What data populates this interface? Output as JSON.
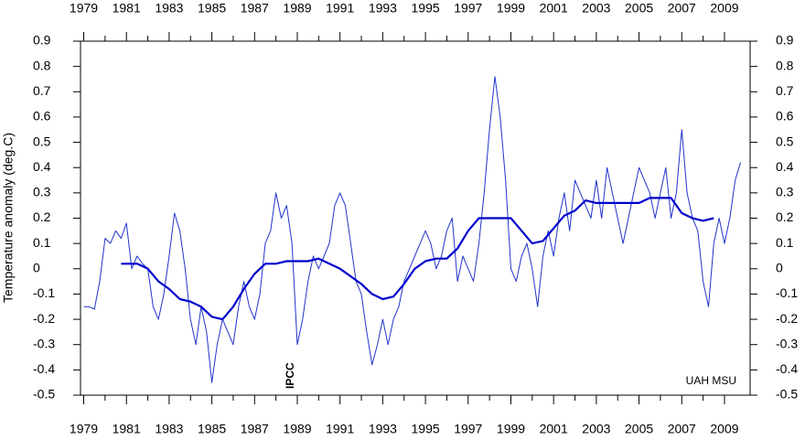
{
  "chart_data": {
    "type": "line",
    "y_label": "Temperature anomaly (deg.C)",
    "annotations": [
      "IPCC",
      "UAH MSU"
    ],
    "xlim": [
      1978.85,
      2010.2
    ],
    "xticks": [
      1979,
      1981,
      1983,
      1985,
      1987,
      1989,
      1991,
      1993,
      1995,
      1997,
      1999,
      2001,
      2003,
      2005,
      2007,
      2009
    ],
    "ylim": [
      -0.5,
      0.9
    ],
    "yticks": [
      -0.5,
      -0.4,
      -0.3,
      -0.2,
      -0.1,
      0,
      0.1,
      0.2,
      0.3,
      0.4,
      0.5,
      0.6,
      0.7,
      0.8,
      0.9
    ],
    "series": [
      {
        "color": "#2233cc",
        "width": 1,
        "x": [
          1979.0,
          1979.25,
          1979.5,
          1979.75,
          1980.0,
          1980.25,
          1980.5,
          1980.75,
          1981.0,
          1981.25,
          1981.5,
          1981.75,
          1982.0,
          1982.25,
          1982.5,
          1982.75,
          1983.0,
          1983.25,
          1983.5,
          1983.75,
          1984.0,
          1984.25,
          1984.5,
          1984.75,
          1985.0,
          1985.25,
          1985.5,
          1985.75,
          1986.0,
          1986.25,
          1986.5,
          1986.75,
          1987.0,
          1987.25,
          1987.5,
          1987.75,
          1988.0,
          1988.25,
          1988.5,
          1988.75,
          1989.0,
          1989.25,
          1989.5,
          1989.75,
          1990.0,
          1990.25,
          1990.5,
          1990.75,
          1991.0,
          1991.25,
          1991.5,
          1991.75,
          1992.0,
          1992.25,
          1992.5,
          1992.75,
          1993.0,
          1993.25,
          1993.5,
          1993.75,
          1994.0,
          1994.25,
          1994.5,
          1994.75,
          1995.0,
          1995.25,
          1995.5,
          1995.75,
          1996.0,
          1996.25,
          1996.5,
          1996.75,
          1997.0,
          1997.25,
          1997.5,
          1997.75,
          1998.0,
          1998.25,
          1998.5,
          1998.75,
          1999.0,
          1999.25,
          1999.5,
          1999.75,
          2000.0,
          2000.25,
          2000.5,
          2000.75,
          2001.0,
          2001.25,
          2001.5,
          2001.75,
          2002.0,
          2002.25,
          2002.5,
          2002.75,
          2003.0,
          2003.25,
          2003.5,
          2003.75,
          2004.0,
          2004.25,
          2004.5,
          2004.75,
          2005.0,
          2005.25,
          2005.5,
          2005.75,
          2006.0,
          2006.25,
          2006.5,
          2006.75,
          2007.0,
          2007.25,
          2007.5,
          2007.75,
          2008.0,
          2008.25,
          2008.5,
          2008.75,
          2009.0,
          2009.25,
          2009.5,
          2009.75
        ],
        "values": [
          -0.15,
          -0.15,
          -0.16,
          -0.05,
          0.12,
          0.1,
          0.15,
          0.12,
          0.18,
          0.0,
          0.05,
          0.02,
          0.0,
          -0.15,
          -0.2,
          -0.1,
          0.05,
          0.22,
          0.15,
          0.0,
          -0.2,
          -0.3,
          -0.15,
          -0.25,
          -0.45,
          -0.3,
          -0.2,
          -0.25,
          -0.3,
          -0.15,
          -0.05,
          -0.15,
          -0.2,
          -0.1,
          0.1,
          0.15,
          0.3,
          0.2,
          0.25,
          0.1,
          -0.3,
          -0.2,
          -0.05,
          0.05,
          0.0,
          0.05,
          0.1,
          0.25,
          0.3,
          0.25,
          0.1,
          -0.05,
          -0.1,
          -0.25,
          -0.38,
          -0.3,
          -0.2,
          -0.3,
          -0.2,
          -0.15,
          -0.05,
          0.0,
          0.05,
          0.1,
          0.15,
          0.1,
          0.0,
          0.05,
          0.15,
          0.2,
          -0.05,
          0.05,
          0.0,
          -0.05,
          0.1,
          0.3,
          0.55,
          0.76,
          0.6,
          0.35,
          0.0,
          -0.05,
          0.05,
          0.1,
          0.0,
          -0.15,
          0.05,
          0.15,
          0.05,
          0.2,
          0.3,
          0.15,
          0.35,
          0.3,
          0.25,
          0.2,
          0.35,
          0.2,
          0.4,
          0.3,
          0.2,
          0.1,
          0.2,
          0.3,
          0.4,
          0.35,
          0.3,
          0.2,
          0.3,
          0.4,
          0.2,
          0.3,
          0.55,
          0.3,
          0.2,
          0.15,
          -0.05,
          -0.15,
          0.1,
          0.2,
          0.1,
          0.2,
          0.35,
          0.42
        ]
      },
      {
        "color": "#0000cc",
        "width": 2.2,
        "x": [
          1980.75,
          1981.5,
          1982.0,
          1982.5,
          1983.0,
          1983.5,
          1984.0,
          1984.5,
          1985.0,
          1985.5,
          1986.0,
          1986.5,
          1987.0,
          1987.5,
          1988.0,
          1988.5,
          1989.0,
          1989.5,
          1990.0,
          1990.5,
          1991.0,
          1991.5,
          1992.0,
          1992.5,
          1993.0,
          1993.5,
          1994.0,
          1994.5,
          1995.0,
          1995.5,
          1996.0,
          1996.5,
          1997.0,
          1997.5,
          1998.0,
          1998.5,
          1999.0,
          1999.5,
          2000.0,
          2000.5,
          2001.0,
          2001.5,
          2002.0,
          2002.5,
          2003.0,
          2003.5,
          2004.0,
          2004.5,
          2005.0,
          2005.5,
          2006.0,
          2006.5,
          2007.0,
          2007.5,
          2008.0,
          2008.5
        ],
        "values": [
          0.02,
          0.02,
          0.0,
          -0.05,
          -0.08,
          -0.12,
          -0.13,
          -0.15,
          -0.19,
          -0.2,
          -0.15,
          -0.08,
          -0.02,
          0.02,
          0.02,
          0.03,
          0.03,
          0.03,
          0.04,
          0.02,
          0.0,
          -0.03,
          -0.06,
          -0.1,
          -0.12,
          -0.11,
          -0.06,
          0.0,
          0.03,
          0.04,
          0.04,
          0.08,
          0.15,
          0.2,
          0.2,
          0.2,
          0.2,
          0.15,
          0.1,
          0.11,
          0.16,
          0.21,
          0.23,
          0.27,
          0.26,
          0.26,
          0.26,
          0.26,
          0.26,
          0.28,
          0.28,
          0.28,
          0.22,
          0.2,
          0.19,
          0.2
        ]
      }
    ]
  }
}
